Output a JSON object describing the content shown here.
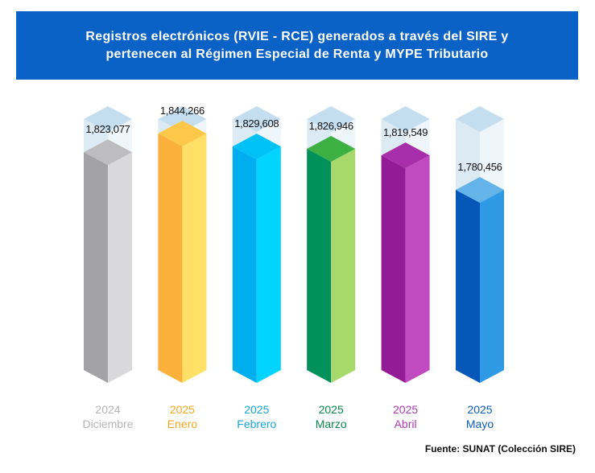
{
  "title": {
    "line1": "Registros electrónicos (RVIE - RCE) generados a través del SIRE y",
    "line2": "pertenecen al Régimen Especial de Renta y MYPE Tributario"
  },
  "source": "Fuente: SUNAT (Colección SIRE)",
  "chart_data": {
    "type": "bar",
    "title": "Registros electrónicos (RVIE - RCE) generados a través del SIRE y pertenecen al Régimen Especial de Renta y MYPE Tributario",
    "categories": [
      "2024 Diciembre",
      "2025 Enero",
      "2025 Febrero",
      "2025 Marzo",
      "2025 Abril",
      "2025 Mayo"
    ],
    "years": [
      "2024",
      "2025",
      "2025",
      "2025",
      "2025",
      "2025"
    ],
    "months": [
      "Diciembre",
      "Enero",
      "Febrero",
      "Marzo",
      "Abril",
      "Mayo"
    ],
    "values": [
      1823077,
      1844266,
      1829608,
      1826946,
      1819549,
      1780456
    ],
    "value_labels": [
      "1,823,077",
      "1,844,266",
      "1,829,608",
      "1,826,946",
      "1,819,549",
      "1,780,456"
    ],
    "colors": [
      {
        "left": "#a3a3a5",
        "right": "#d9d9db",
        "top": "#bdbdbf",
        "label": "#b5b5b5"
      },
      {
        "left": "#fbb03b",
        "right": "#ffe066",
        "top": "#fdc84a",
        "label": "#f7a823"
      },
      {
        "left": "#00aeef",
        "right": "#00d4ff",
        "top": "#00c1f5",
        "label": "#16a6e0"
      },
      {
        "left": "#00915a",
        "right": "#a6d96a",
        "top": "#3cb043",
        "label": "#0a8a4a"
      },
      {
        "left": "#931b95",
        "right": "#c04bc0",
        "top": "#a82fab",
        "label": "#b03ab5"
      },
      {
        "left": "#0757b8",
        "right": "#2e9ae6",
        "top": "#64b4ea",
        "label": "#0b5fc2"
      }
    ],
    "ghost_colors": {
      "left": "#dceaf4",
      "right": "#eef6fb",
      "top": "#c4def0"
    }
  }
}
